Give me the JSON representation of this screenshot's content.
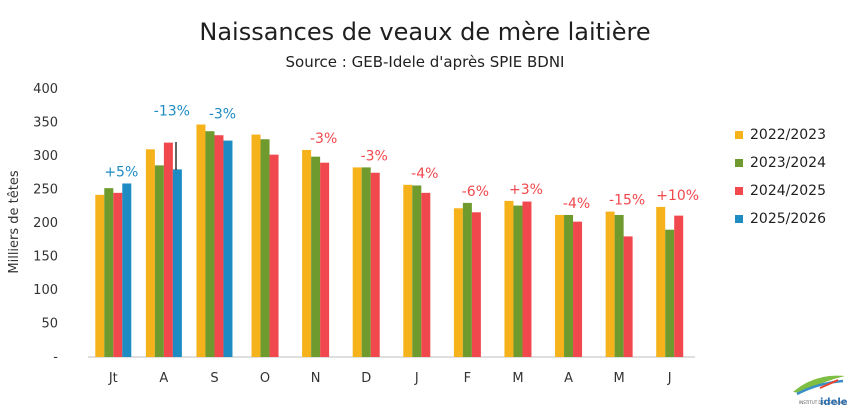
{
  "chart_data": {
    "type": "bar",
    "title": "Naissances de veaux de mère laitière",
    "subtitle": "Source : GEB-Idele d'après SPIE BDNI",
    "ylabel": "Milliers de têtes",
    "xlabel": "",
    "ylim": [
      0,
      400
    ],
    "yticks": [
      0,
      50,
      100,
      150,
      200,
      250,
      300,
      350,
      400
    ],
    "ytick_labels": [
      "-",
      "50",
      "100",
      "150",
      "200",
      "250",
      "300",
      "350",
      "400"
    ],
    "grid": false,
    "legend_position": "right",
    "categories": [
      "Jt",
      "A",
      "S",
      "O",
      "N",
      "D",
      "J",
      "F",
      "M",
      "A",
      "M",
      "J"
    ],
    "series": [
      {
        "name": "2022/2023",
        "color": "#F5B21B",
        "values": [
          242,
          310,
          347,
          332,
          309,
          283,
          257,
          222,
          233,
          212,
          217,
          224
        ]
      },
      {
        "name": "2023/2024",
        "color": "#6E9A2E",
        "values": [
          252,
          286,
          337,
          325,
          299,
          283,
          256,
          230,
          226,
          212,
          212,
          190
        ]
      },
      {
        "name": "2024/2025",
        "color": "#F0484C",
        "values": [
          245,
          320,
          331,
          302,
          290,
          275,
          245,
          216,
          232,
          202,
          180,
          211
        ]
      },
      {
        "name": "2025/2026",
        "color": "#1E8BC3",
        "values": [
          259,
          280,
          323,
          null,
          null,
          null,
          null,
          null,
          null,
          null,
          null,
          null
        ]
      }
    ],
    "annotations": [
      {
        "category_index": 0,
        "text": "+5%",
        "color": "#1E8BC3"
      },
      {
        "category_index": 1,
        "text": "-13%",
        "color": "#1E8BC3"
      },
      {
        "category_index": 2,
        "text": "-3%",
        "color": "#1E8BC3"
      },
      {
        "category_index": 4,
        "text": "-3%",
        "color": "#F0484C"
      },
      {
        "category_index": 5,
        "text": "-3%",
        "color": "#F0484C"
      },
      {
        "category_index": 6,
        "text": "-4%",
        "color": "#F0484C"
      },
      {
        "category_index": 7,
        "text": "-6%",
        "color": "#F0484C"
      },
      {
        "category_index": 8,
        "text": "+3%",
        "color": "#F0484C"
      },
      {
        "category_index": 9,
        "text": "-4%",
        "color": "#F0484C"
      },
      {
        "category_index": 10,
        "text": "-15%",
        "color": "#F0484C"
      },
      {
        "category_index": 11,
        "text": "+10%",
        "color": "#F0484C"
      }
    ]
  },
  "logo": {
    "name": "idele-logo",
    "text": "idele",
    "tagline": "INSTITUT DE L'ÉLEVAGE"
  }
}
